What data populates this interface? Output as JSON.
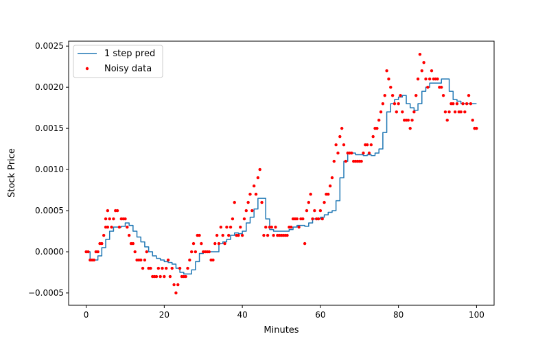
{
  "chart_data": {
    "type": "line",
    "title": "",
    "xlabel": "Minutes",
    "ylabel": "Stock Price",
    "xlim": [
      -4.5,
      104.5
    ],
    "ylim": [
      -0.00065,
      0.00256
    ],
    "xticks": [
      0,
      20,
      40,
      60,
      80,
      100
    ],
    "xtick_labels": [
      "0",
      "20",
      "40",
      "60",
      "80",
      "100"
    ],
    "yticks": [
      -0.0005,
      0,
      0.0005,
      0.001,
      0.0015,
      0.002,
      0.0025
    ],
    "ytick_labels": [
      "−0.0005",
      "0.0000",
      "0.0005",
      "0.0010",
      "0.0015",
      "0.0020",
      "0.0025"
    ],
    "grid": false,
    "legend_position": "top-left",
    "series": [
      {
        "name": "1 step pred",
        "kind": "line",
        "color": "#1f77b4",
        "x": [
          0,
          1,
          2,
          3,
          4,
          5,
          6,
          7,
          8,
          9,
          10,
          11,
          12,
          13,
          14,
          15,
          16,
          17,
          18,
          19,
          20,
          21,
          22,
          23,
          24,
          25,
          26,
          27,
          28,
          29,
          30,
          31,
          32,
          33,
          34,
          35,
          36,
          37,
          38,
          39,
          40,
          41,
          42,
          43,
          44,
          45,
          46,
          47,
          48,
          49,
          50,
          51,
          52,
          53,
          54,
          55,
          56,
          57,
          58,
          59,
          60,
          61,
          62,
          63,
          64,
          65,
          66,
          67,
          68,
          69,
          70,
          71,
          72,
          73,
          74,
          75,
          76,
          77,
          78,
          79,
          80,
          81,
          82,
          83,
          84,
          85,
          86,
          87,
          88,
          89,
          90,
          91,
          92,
          93,
          94,
          95,
          96,
          97,
          98,
          99,
          100
        ],
        "y": [
          0.0,
          -0.0001,
          -0.0001,
          -5e-05,
          5e-05,
          0.00015,
          0.00025,
          0.0003,
          0.0003,
          0.00031,
          0.00035,
          0.00032,
          0.00025,
          0.00018,
          0.00012,
          6e-05,
          0.0,
          -5e-05,
          -8e-05,
          -0.0001,
          -0.00012,
          -0.00013,
          -0.00015,
          -0.0002,
          -0.00025,
          -0.00027,
          -0.00027,
          -0.00022,
          -0.00012,
          -2e-05,
          0.0,
          0.0,
          0.0,
          0.0,
          0.0001,
          0.00012,
          0.00015,
          0.0002,
          0.00023,
          0.00022,
          0.00025,
          0.00035,
          0.00042,
          0.00052,
          0.00065,
          0.00065,
          0.0004,
          0.00027,
          0.00025,
          0.00025,
          0.00025,
          0.00025,
          0.00027,
          0.0003,
          0.00032,
          0.00032,
          0.00031,
          0.00035,
          0.0004,
          0.0004,
          0.00042,
          0.00045,
          0.00048,
          0.0005,
          0.00062,
          0.0009,
          0.0011,
          0.0012,
          0.0012,
          0.00118,
          0.00118,
          0.00117,
          0.00118,
          0.00117,
          0.0012,
          0.00125,
          0.00145,
          0.0017,
          0.0018,
          0.00185,
          0.00188,
          0.0019,
          0.0018,
          0.00175,
          0.00172,
          0.0018,
          0.00195,
          0.002,
          0.00205,
          0.00205,
          0.00205,
          0.0021,
          0.0021,
          0.00195,
          0.00185,
          0.00183,
          0.0018,
          0.0018,
          0.0018,
          0.0018,
          0.0018
        ]
      },
      {
        "name": "Noisy data",
        "kind": "scatter",
        "color": "#ff0000",
        "points": [
          [
            0,
            0.0
          ],
          [
            0.5,
            0.0
          ],
          [
            1,
            -0.0001
          ],
          [
            1.5,
            -0.0001
          ],
          [
            2,
            -0.0001
          ],
          [
            2.5,
            0.0
          ],
          [
            3,
            0.0
          ],
          [
            3.5,
            0.0001
          ],
          [
            4,
            0.0001
          ],
          [
            4.5,
            0.0002
          ],
          [
            5,
            0.0003
          ],
          [
            5,
            0.0004
          ],
          [
            5.5,
            0.0003
          ],
          [
            5.5,
            0.0005
          ],
          [
            6,
            0.0004
          ],
          [
            6.5,
            0.0003
          ],
          [
            7,
            0.0004
          ],
          [
            7.5,
            0.0005
          ],
          [
            8,
            0.0005
          ],
          [
            8.5,
            0.0003
          ],
          [
            9,
            0.0004
          ],
          [
            9.5,
            0.0004
          ],
          [
            10,
            0.0004
          ],
          [
            10.5,
            0.0003
          ],
          [
            11,
            0.0002
          ],
          [
            11.5,
            0.0001
          ],
          [
            12,
            0.0001
          ],
          [
            12.5,
            0.0
          ],
          [
            13,
            -0.0001
          ],
          [
            13.5,
            -0.0001
          ],
          [
            14,
            -0.0001
          ],
          [
            14.5,
            -0.0002
          ],
          [
            15,
            -0.0001
          ],
          [
            15.5,
            0.0
          ],
          [
            16,
            -0.0002
          ],
          [
            16.5,
            -0.0002
          ],
          [
            17,
            -0.0003
          ],
          [
            17.5,
            -0.0003
          ],
          [
            18,
            -0.0003
          ],
          [
            18.5,
            -0.0002
          ],
          [
            19,
            -0.0003
          ],
          [
            19.5,
            -0.0002
          ],
          [
            20,
            -0.0003
          ],
          [
            20.5,
            -0.0002
          ],
          [
            21,
            -0.0001
          ],
          [
            21.5,
            -0.0003
          ],
          [
            22,
            -0.0002
          ],
          [
            22.5,
            -0.0004
          ],
          [
            23,
            -0.0005
          ],
          [
            23.5,
            -0.0004
          ],
          [
            24,
            -0.0002
          ],
          [
            24.5,
            -0.0003
          ],
          [
            25,
            -0.0003
          ],
          [
            25.5,
            -0.0003
          ],
          [
            26,
            -0.0002
          ],
          [
            26.5,
            -0.0001
          ],
          [
            27,
            0.0
          ],
          [
            27.5,
            0.0001
          ],
          [
            28,
            0.0
          ],
          [
            28.5,
            0.0002
          ],
          [
            29,
            0.0002
          ],
          [
            29.5,
            0.0001
          ],
          [
            30,
            0.0
          ],
          [
            30.5,
            0.0
          ],
          [
            31,
            0.0
          ],
          [
            31.5,
            0.0
          ],
          [
            32,
            -0.0001
          ],
          [
            32.5,
            -0.0001
          ],
          [
            33,
            0.0001
          ],
          [
            33.5,
            0.0002
          ],
          [
            34,
            0.0001
          ],
          [
            34.5,
            0.0003
          ],
          [
            35,
            0.0002
          ],
          [
            35.5,
            0.0001
          ],
          [
            36,
            0.0003
          ],
          [
            36.5,
            0.0002
          ],
          [
            37,
            0.0003
          ],
          [
            37.5,
            0.0004
          ],
          [
            38,
            0.0006
          ],
          [
            38.5,
            0.0002
          ],
          [
            39,
            0.0002
          ],
          [
            39.5,
            0.0003
          ],
          [
            40,
            0.0002
          ],
          [
            40.5,
            0.0004
          ],
          [
            41,
            0.0005
          ],
          [
            41.5,
            0.0006
          ],
          [
            42,
            0.0007
          ],
          [
            42.5,
            0.0005
          ],
          [
            43,
            0.0008
          ],
          [
            43.5,
            0.0007
          ],
          [
            44,
            0.0009
          ],
          [
            44.5,
            0.001
          ],
          [
            45,
            0.0006
          ],
          [
            45.5,
            0.0002
          ],
          [
            46,
            0.0003
          ],
          [
            46.5,
            0.0002
          ],
          [
            47,
            0.0003
          ],
          [
            47.5,
            0.0003
          ],
          [
            48,
            0.0002
          ],
          [
            48.5,
            0.0003
          ],
          [
            49,
            0.0002
          ],
          [
            49.5,
            0.0002
          ],
          [
            50,
            0.0002
          ],
          [
            50.5,
            0.0002
          ],
          [
            51,
            0.0002
          ],
          [
            51.5,
            0.0002
          ],
          [
            52,
            0.0003
          ],
          [
            52.5,
            0.0003
          ],
          [
            53,
            0.0004
          ],
          [
            53.5,
            0.0004
          ],
          [
            54,
            0.0004
          ],
          [
            54.5,
            0.0003
          ],
          [
            55,
            0.0004
          ],
          [
            55.5,
            0.0004
          ],
          [
            56,
            0.0001
          ],
          [
            56.5,
            0.0005
          ],
          [
            57,
            0.0006
          ],
          [
            57.5,
            0.0007
          ],
          [
            58,
            0.0004
          ],
          [
            58.5,
            0.0005
          ],
          [
            59,
            0.0004
          ],
          [
            59.5,
            0.0004
          ],
          [
            60,
            0.0005
          ],
          [
            60.5,
            0.0004
          ],
          [
            61,
            0.0006
          ],
          [
            61.5,
            0.0007
          ],
          [
            62,
            0.0007
          ],
          [
            62.5,
            0.0008
          ],
          [
            63,
            0.0009
          ],
          [
            63.5,
            0.0011
          ],
          [
            64,
            0.0013
          ],
          [
            64.5,
            0.0012
          ],
          [
            65,
            0.0014
          ],
          [
            65.5,
            0.0015
          ],
          [
            66,
            0.0013
          ],
          [
            66.5,
            0.0011
          ],
          [
            67,
            0.0012
          ],
          [
            67.5,
            0.0012
          ],
          [
            68,
            0.0012
          ],
          [
            68.5,
            0.0011
          ],
          [
            69,
            0.0011
          ],
          [
            69.5,
            0.0011
          ],
          [
            70,
            0.0011
          ],
          [
            70.5,
            0.0011
          ],
          [
            71,
            0.0012
          ],
          [
            71.5,
            0.0013
          ],
          [
            72,
            0.0013
          ],
          [
            72.5,
            0.0012
          ],
          [
            73,
            0.0013
          ],
          [
            73.5,
            0.0014
          ],
          [
            74,
            0.0015
          ],
          [
            74.5,
            0.0015
          ],
          [
            75,
            0.0016
          ],
          [
            75.5,
            0.0017
          ],
          [
            76,
            0.0018
          ],
          [
            76.5,
            0.0019
          ],
          [
            77,
            0.0022
          ],
          [
            77.5,
            0.0021
          ],
          [
            78,
            0.002
          ],
          [
            78.5,
            0.0019
          ],
          [
            79,
            0.0018
          ],
          [
            79.5,
            0.0017
          ],
          [
            80,
            0.0018
          ],
          [
            80.5,
            0.0019
          ],
          [
            81,
            0.0017
          ],
          [
            81.5,
            0.0016
          ],
          [
            82,
            0.0016
          ],
          [
            82.5,
            0.0016
          ],
          [
            83,
            0.0015
          ],
          [
            83.5,
            0.0016
          ],
          [
            84,
            0.0017
          ],
          [
            84.5,
            0.0019
          ],
          [
            85,
            0.0021
          ],
          [
            85.5,
            0.0024
          ],
          [
            86,
            0.0022
          ],
          [
            86.5,
            0.0023
          ],
          [
            87,
            0.0021
          ],
          [
            87.5,
            0.002
          ],
          [
            88,
            0.0021
          ],
          [
            88.5,
            0.0022
          ],
          [
            89,
            0.0021
          ],
          [
            89.5,
            0.0021
          ],
          [
            90,
            0.0021
          ],
          [
            90.5,
            0.002
          ],
          [
            91,
            0.002
          ],
          [
            91.5,
            0.0019
          ],
          [
            92,
            0.0017
          ],
          [
            92.5,
            0.0016
          ],
          [
            93,
            0.0017
          ],
          [
            93.5,
            0.0018
          ],
          [
            94,
            0.0018
          ],
          [
            94.5,
            0.0017
          ],
          [
            95,
            0.0018
          ],
          [
            95.5,
            0.0017
          ],
          [
            96,
            0.0017
          ],
          [
            96.5,
            0.0018
          ],
          [
            97,
            0.0017
          ],
          [
            97.5,
            0.0018
          ],
          [
            98,
            0.0019
          ],
          [
            98.5,
            0.0018
          ],
          [
            99,
            0.0016
          ],
          [
            99.5,
            0.0015
          ],
          [
            100,
            0.0015
          ]
        ]
      }
    ]
  }
}
